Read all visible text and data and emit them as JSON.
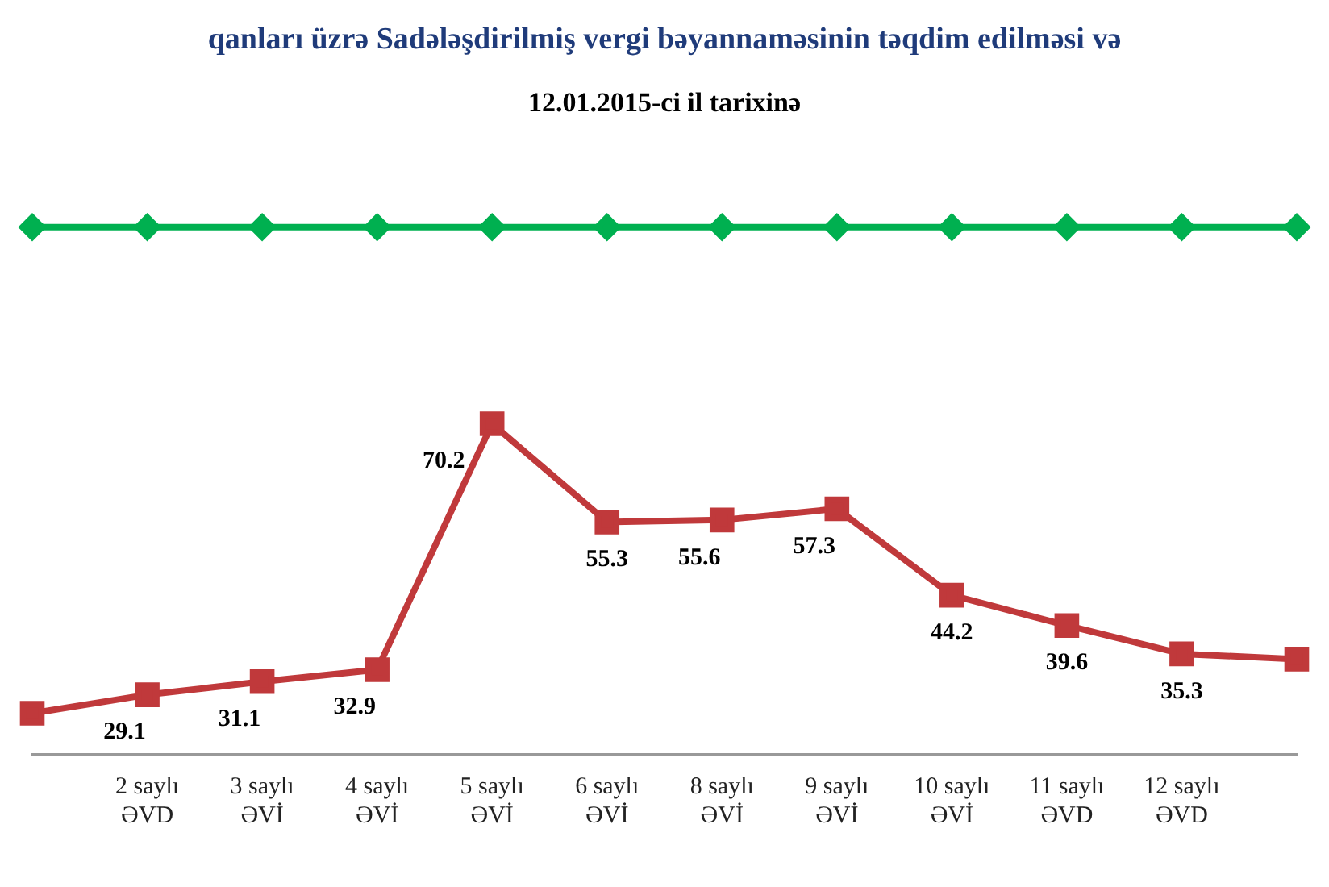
{
  "chart_data": {
    "type": "line",
    "title": "qanları üzrə Sadələşdirilmiş vergi bəyannaməsinin təqdim edilməsi və",
    "subtitle": "12.01.2015-ci il tarixinə",
    "categories": [
      null,
      "2 saylı ƏVD",
      "3 saylı ƏVİ",
      "4 saylı ƏVİ",
      "5 saylı ƏVİ",
      "6 saylı ƏVİ",
      "8 saylı ƏVİ",
      "9 saylı ƏVİ",
      "10 saylı ƏVİ",
      "11 saylı ƏVD",
      "12 saylı ƏVD",
      null
    ],
    "series": [
      {
        "color": "#00b050",
        "marker": "diamond",
        "values": [
          100,
          100,
          100,
          100,
          100,
          100,
          100,
          100,
          100,
          100,
          100,
          100
        ]
      },
      {
        "color": "#c0393b",
        "marker": "square",
        "values": [
          26.3,
          29.1,
          31.1,
          32.9,
          70.2,
          55.3,
          55.6,
          57.3,
          44.2,
          39.6,
          35.3,
          34.5
        ],
        "value_labels": [
          null,
          "29.1",
          "31.1",
          "32.9",
          "70.2",
          "55.3",
          "55.6",
          "57.3",
          "44.2",
          "39.6",
          "35.3",
          null
        ]
      }
    ],
    "grid": false,
    "legend": false
  }
}
